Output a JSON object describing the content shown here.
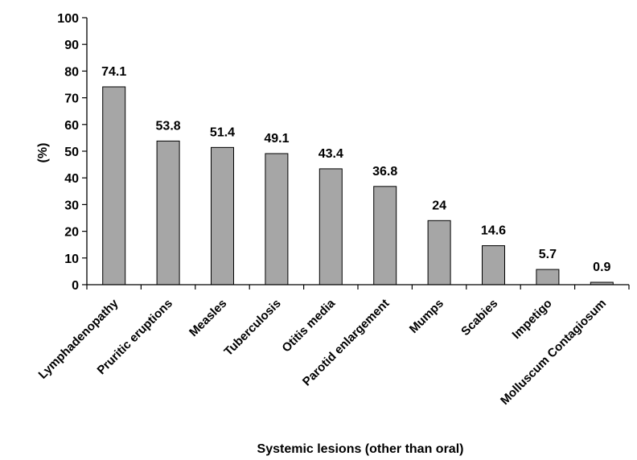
{
  "chart_data": {
    "type": "bar",
    "title": "",
    "xlabel": "Systemic lesions (other than oral)",
    "ylabel": "(%)",
    "ylim": [
      0,
      100
    ],
    "yticks": [
      0,
      10,
      20,
      30,
      40,
      50,
      60,
      70,
      80,
      90,
      100
    ],
    "grid": false,
    "legend": "none",
    "bar_color": "#a6a6a6",
    "categories": [
      "Lymphadenopathy",
      "Pruritic eruptions",
      "Measles",
      "Tuberculosis",
      "Otitis media",
      "Parotid enlargement",
      "Mumps",
      "Scabies",
      "Impetigo",
      "Molluscum Contagiosum"
    ],
    "values": [
      74.1,
      53.8,
      51.4,
      49.1,
      43.4,
      36.8,
      24,
      14.6,
      5.7,
      0.9
    ],
    "value_labels": [
      "74.1",
      "53.8",
      "51.4",
      "49.1",
      "43.4",
      "36.8",
      "24",
      "14.6",
      "5.7",
      "0.9"
    ]
  }
}
